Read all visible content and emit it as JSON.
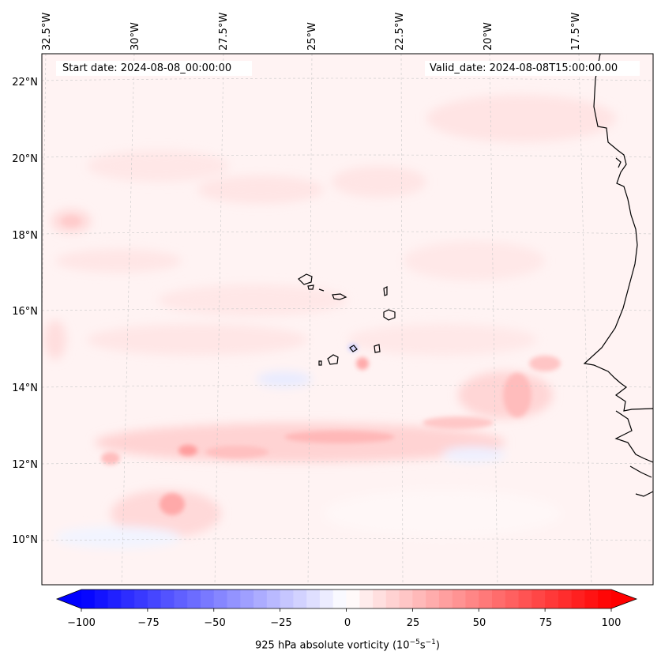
{
  "header": {
    "start_date": "Start date: 2024-08-08_00:00:00",
    "valid_date": "Valid_date: 2024-08-08T15:00:00.00"
  },
  "map": {
    "lat_labels": [
      "22°N",
      "20°N",
      "18°N",
      "16°N",
      "14°N",
      "12°N",
      "10°N"
    ],
    "lon_labels": [
      "32.5°W",
      "30°W",
      "27.5°W",
      "25°W",
      "22.5°W",
      "20°W",
      "17.5°W"
    ]
  },
  "colorbar": {
    "title": "925 hPa absolute vorticity (10",
    "title_exp1": "−5",
    "title_mid": "s",
    "title_exp2": "−1",
    "title_end": ")",
    "ticks": [
      "−100",
      "−75",
      "−50",
      "−25",
      "0",
      "25",
      "50",
      "75",
      "100"
    ],
    "min": -100,
    "max": 100,
    "negative_color": "#0000ff",
    "positive_color": "#ff0000"
  }
}
